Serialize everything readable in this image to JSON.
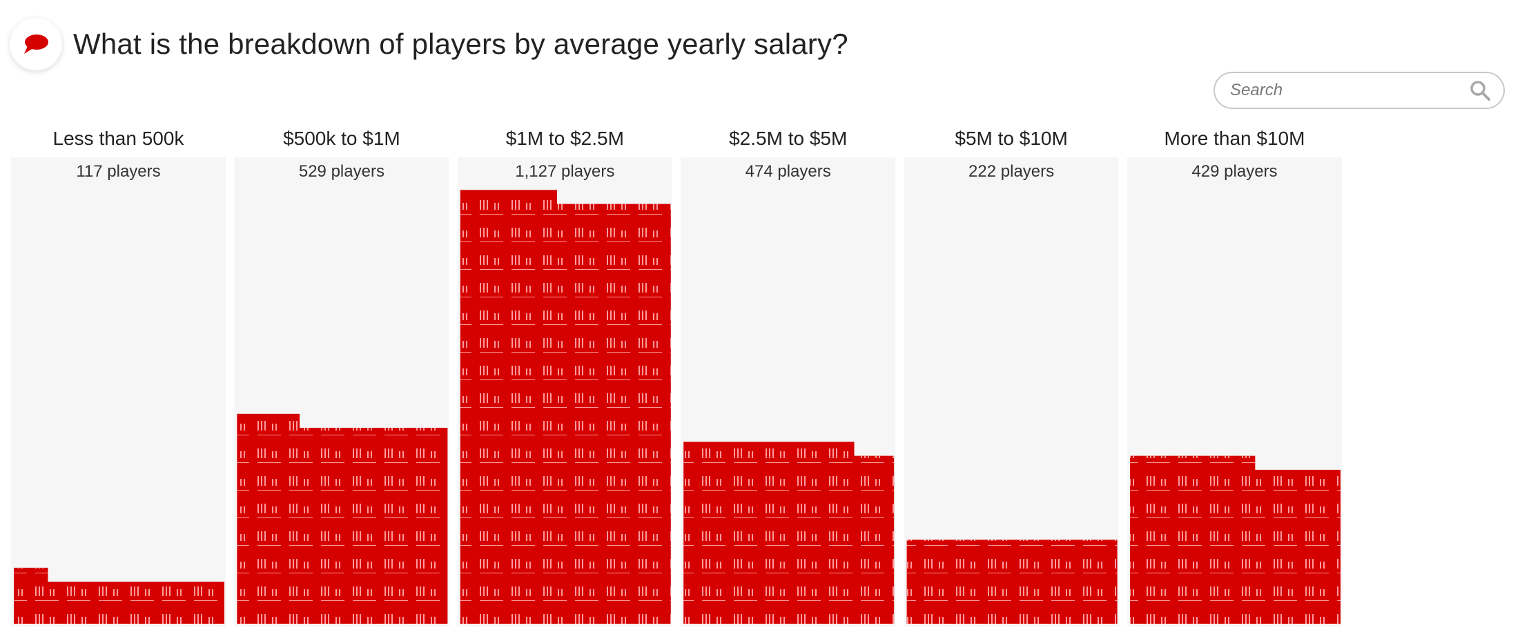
{
  "header": {
    "title": "What is the breakdown of players by average yearly salary?",
    "icon": "speech-bubble-icon"
  },
  "search": {
    "placeholder": "Search",
    "icon": "search-icon"
  },
  "colors": {
    "bar": "#d50000",
    "column_background": "#f6f6f6",
    "search_border": "#c8c8c8"
  },
  "chart_data": {
    "type": "bar",
    "categories": [
      "Less than 500k",
      "$500k to $1M",
      "$1M to $2.5M",
      "$2.5M to $5M",
      "$5M to $10M",
      "More than $10M"
    ],
    "values": [
      117,
      529,
      1127,
      474,
      222,
      429
    ],
    "value_labels": [
      "117 players",
      "529 players",
      "1,127 players",
      "474 players",
      "222 players",
      "429 players"
    ],
    "title": "What is the breakdown of players by average yearly salary?",
    "xlabel": "",
    "ylabel": "",
    "grid": false,
    "legend": "none"
  }
}
